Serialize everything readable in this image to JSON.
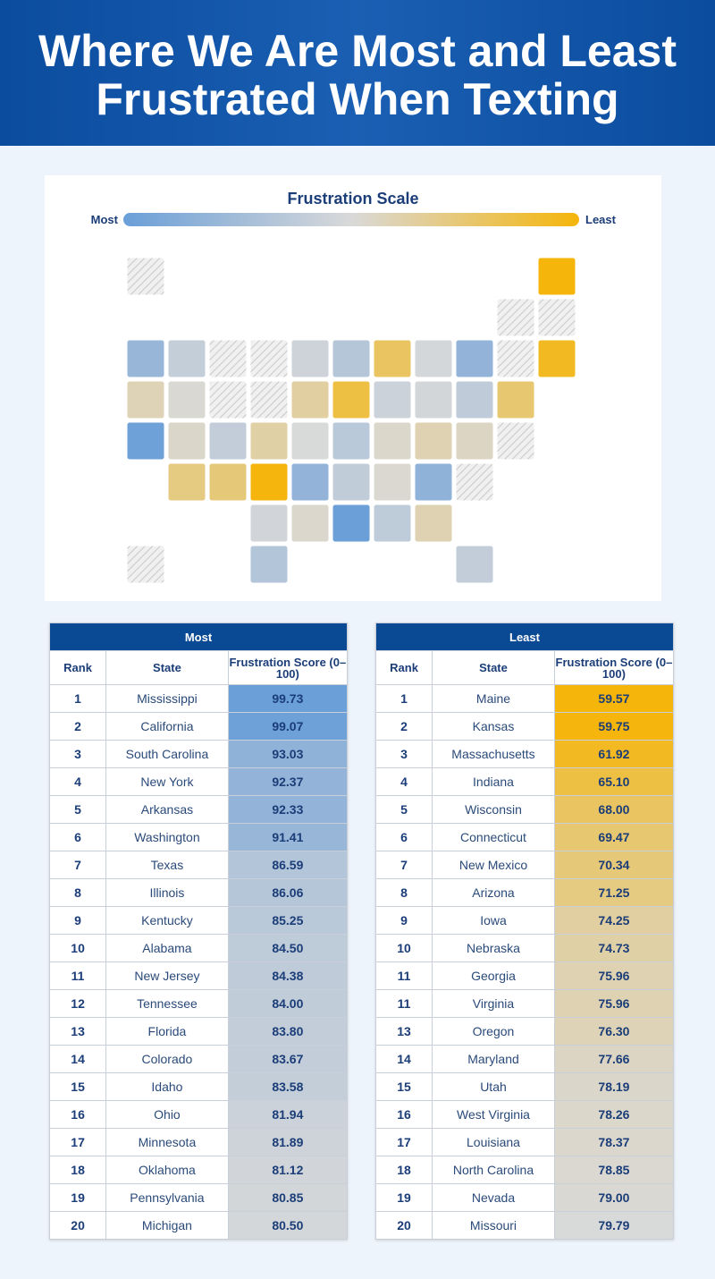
{
  "header": {
    "title_lines": [
      "Where We Are Most and Least",
      "Frustrated When Texting"
    ]
  },
  "scale": {
    "title": "Frustration Scale",
    "left": "Most",
    "right": "Least"
  },
  "tables": {
    "most": {
      "title": "Most",
      "columns": [
        "Rank",
        "State",
        "Frustration Score (0–100)"
      ],
      "rows": [
        {
          "rank": 1,
          "state": "Mississippi",
          "score": "99.73"
        },
        {
          "rank": 2,
          "state": "California",
          "score": "99.07"
        },
        {
          "rank": 3,
          "state": "South Carolina",
          "score": "93.03"
        },
        {
          "rank": 4,
          "state": "New York",
          "score": "92.37"
        },
        {
          "rank": 5,
          "state": "Arkansas",
          "score": "92.33"
        },
        {
          "rank": 6,
          "state": "Washington",
          "score": "91.41"
        },
        {
          "rank": 7,
          "state": "Texas",
          "score": "86.59"
        },
        {
          "rank": 8,
          "state": "Illinois",
          "score": "86.06"
        },
        {
          "rank": 9,
          "state": "Kentucky",
          "score": "85.25"
        },
        {
          "rank": 10,
          "state": "Alabama",
          "score": "84.50"
        },
        {
          "rank": 11,
          "state": "New Jersey",
          "score": "84.38"
        },
        {
          "rank": 12,
          "state": "Tennessee",
          "score": "84.00"
        },
        {
          "rank": 13,
          "state": "Florida",
          "score": "83.80"
        },
        {
          "rank": 14,
          "state": "Colorado",
          "score": "83.67"
        },
        {
          "rank": 15,
          "state": "Idaho",
          "score": "83.58"
        },
        {
          "rank": 16,
          "state": "Ohio",
          "score": "81.94"
        },
        {
          "rank": 17,
          "state": "Minnesota",
          "score": "81.89"
        },
        {
          "rank": 18,
          "state": "Oklahoma",
          "score": "81.12"
        },
        {
          "rank": 19,
          "state": "Pennsylvania",
          "score": "80.85"
        },
        {
          "rank": 20,
          "state": "Michigan",
          "score": "80.50"
        }
      ]
    },
    "least": {
      "title": "Least",
      "columns": [
        "Rank",
        "State",
        "Frustration Score (0–100)"
      ],
      "rows": [
        {
          "rank": 1,
          "state": "Maine",
          "score": "59.57"
        },
        {
          "rank": 2,
          "state": "Kansas",
          "score": "59.75"
        },
        {
          "rank": 3,
          "state": "Massachusetts",
          "score": "61.92"
        },
        {
          "rank": 4,
          "state": "Indiana",
          "score": "65.10"
        },
        {
          "rank": 5,
          "state": "Wisconsin",
          "score": "68.00"
        },
        {
          "rank": 6,
          "state": "Connecticut",
          "score": "69.47"
        },
        {
          "rank": 7,
          "state": "New Mexico",
          "score": "70.34"
        },
        {
          "rank": 8,
          "state": "Arizona",
          "score": "71.25"
        },
        {
          "rank": 9,
          "state": "Iowa",
          "score": "74.25"
        },
        {
          "rank": 10,
          "state": "Nebraska",
          "score": "74.73"
        },
        {
          "rank": 11,
          "state": "Georgia",
          "score": "75.96"
        },
        {
          "rank": 11,
          "state": "Virginia",
          "score": "75.96"
        },
        {
          "rank": 13,
          "state": "Oregon",
          "score": "76.30"
        },
        {
          "rank": 14,
          "state": "Maryland",
          "score": "77.66"
        },
        {
          "rank": 15,
          "state": "Utah",
          "score": "78.19"
        },
        {
          "rank": 16,
          "state": "West Virginia",
          "score": "78.26"
        },
        {
          "rank": 17,
          "state": "Louisiana",
          "score": "78.37"
        },
        {
          "rank": 18,
          "state": "North Carolina",
          "score": "78.85"
        },
        {
          "rank": 19,
          "state": "Nevada",
          "score": "79.00"
        },
        {
          "rank": 20,
          "state": "Missouri",
          "score": "79.79"
        }
      ]
    }
  }
}
